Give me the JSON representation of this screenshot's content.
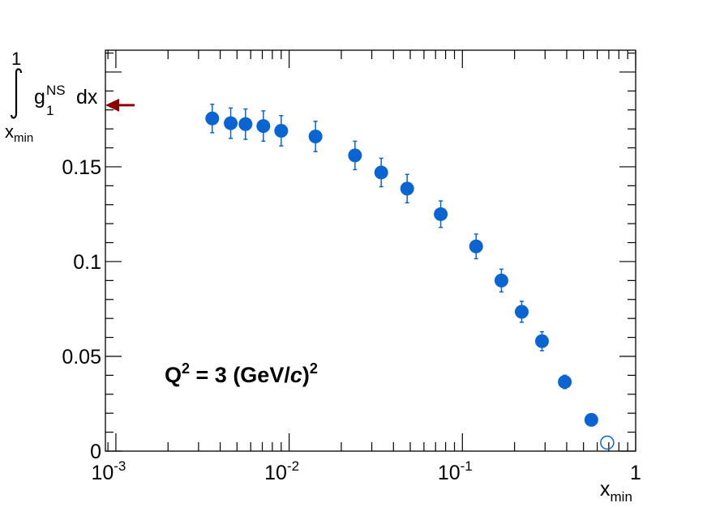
{
  "chart_data": {
    "type": "scatter",
    "xscale": "log",
    "xlim": [
      0.00087,
      1.0
    ],
    "ylim": [
      0,
      0.2115
    ],
    "x_tick_labels": [
      {
        "x": 0.001,
        "base": "10",
        "exp": "-3"
      },
      {
        "x": 0.01,
        "base": "10",
        "exp": "-2"
      },
      {
        "x": 0.1,
        "base": "10",
        "exp": "-1"
      },
      {
        "x": 1,
        "base": "1",
        "exp": ""
      }
    ],
    "y_ticks": [
      0,
      0.05,
      0.1,
      0.15
    ],
    "y_tick_labels": [
      "0",
      "0.05",
      "0.1",
      "0.15"
    ],
    "xlabel": {
      "base": "x",
      "sub": "min"
    },
    "ylabel": {
      "integral_upper": "1",
      "integral_lower_base": "x",
      "integral_lower_sub": "min",
      "func": "g",
      "func_sup": "NS",
      "func_sub": "1",
      "dx": "dx"
    },
    "annotation": {
      "part1": "Q",
      "sup1": "2",
      "part2": " = 3 (GeV/",
      "c_italic": "c",
      "part3": ")",
      "sup2": "2",
      "color": "#a0a0a0"
    },
    "arrow": {
      "y": 0.1825,
      "color": "#8b0000",
      "direction": "left"
    },
    "series": [
      {
        "marker": "filled-circle",
        "color": "#0a64d2",
        "points": [
          {
            "x": 0.0036,
            "y": 0.1755,
            "err": 0.0075
          },
          {
            "x": 0.0046,
            "y": 0.173,
            "err": 0.008
          },
          {
            "x": 0.0056,
            "y": 0.1725,
            "err": 0.008
          },
          {
            "x": 0.0071,
            "y": 0.1715,
            "err": 0.008
          },
          {
            "x": 0.009,
            "y": 0.169,
            "err": 0.008
          },
          {
            "x": 0.0142,
            "y": 0.166,
            "err": 0.008
          },
          {
            "x": 0.024,
            "y": 0.156,
            "err": 0.0075
          },
          {
            "x": 0.034,
            "y": 0.147,
            "err": 0.0075
          },
          {
            "x": 0.048,
            "y": 0.1385,
            "err": 0.0075
          },
          {
            "x": 0.075,
            "y": 0.125,
            "err": 0.007
          },
          {
            "x": 0.12,
            "y": 0.108,
            "err": 0.0065
          },
          {
            "x": 0.168,
            "y": 0.09,
            "err": 0.006
          },
          {
            "x": 0.22,
            "y": 0.0735,
            "err": 0.0055
          },
          {
            "x": 0.288,
            "y": 0.058,
            "err": 0.005
          },
          {
            "x": 0.39,
            "y": 0.0365,
            "err": 0.0035
          },
          {
            "x": 0.555,
            "y": 0.0165,
            "err": 0.001
          }
        ]
      },
      {
        "marker": "open-circle",
        "color": "#0a64d2",
        "points": [
          {
            "x": 0.685,
            "y": 0.0045,
            "err": 0.0
          }
        ]
      }
    ]
  }
}
